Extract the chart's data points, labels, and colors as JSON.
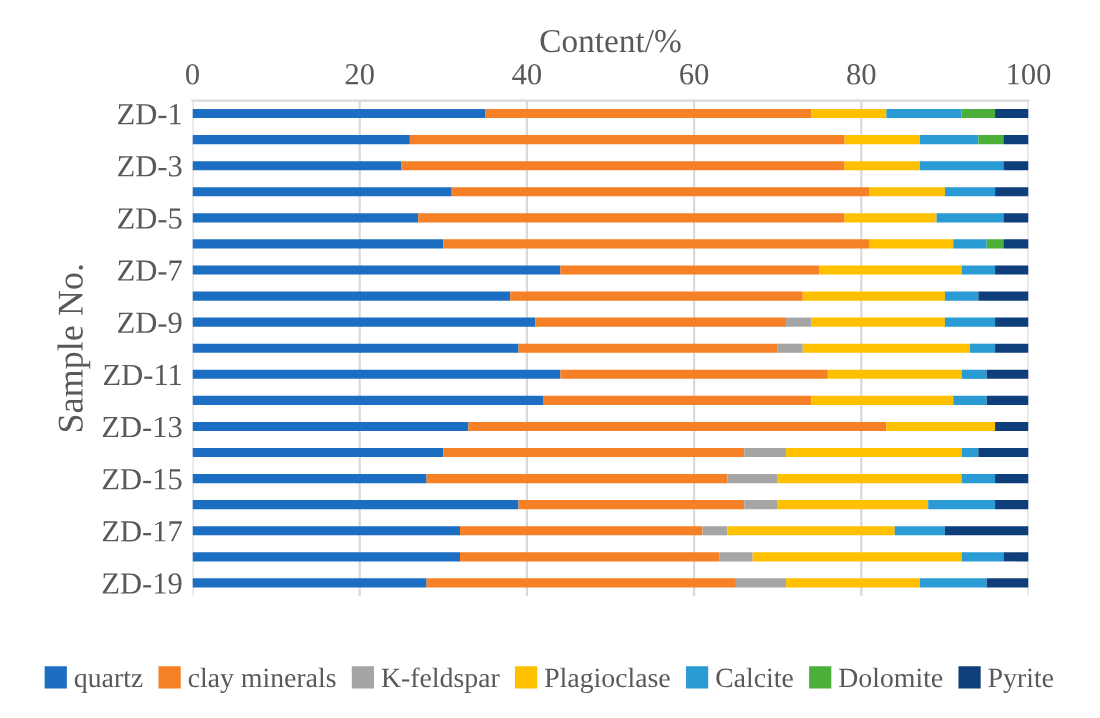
{
  "chart_data": {
    "type": "bar",
    "orientation": "horizontal",
    "stacked": true,
    "xlabel": "Content/%",
    "ylabel": "Sample No.",
    "categories": [
      "ZD-1",
      null,
      "ZD-3",
      null,
      "ZD-5",
      null,
      "ZD-7",
      null,
      "ZD-9",
      null,
      "ZD-11",
      null,
      "ZD-13",
      null,
      "ZD-15",
      null,
      "ZD-17",
      null,
      "ZD-19"
    ],
    "series": [
      {
        "name": "quartz",
        "color": "#1b6ec2",
        "values": [
          35,
          26,
          25,
          31,
          27,
          30,
          44,
          38,
          41,
          39,
          44,
          42,
          33,
          30,
          28,
          39,
          32,
          32,
          28
        ]
      },
      {
        "name": "clay minerals",
        "color": "#f58025",
        "values": [
          39,
          52,
          53,
          50,
          51,
          51,
          31,
          35,
          30,
          31,
          32,
          32,
          50,
          36,
          36,
          27,
          29,
          31,
          37
        ]
      },
      {
        "name": "K-feldspar",
        "color": "#a5a5a5",
        "values": [
          0,
          0,
          0,
          0,
          0,
          0,
          0,
          0,
          3,
          3,
          0,
          0,
          0,
          5,
          6,
          4,
          3,
          4,
          6
        ]
      },
      {
        "name": "Plagioclase",
        "color": "#ffc000",
        "values": [
          9,
          9,
          9,
          9,
          11,
          10,
          17,
          17,
          16,
          20,
          16,
          17,
          13,
          21,
          22,
          18,
          20,
          25,
          16
        ]
      },
      {
        "name": "Calcite",
        "color": "#2b9bd6",
        "values": [
          9,
          7,
          10,
          6,
          8,
          4,
          4,
          4,
          6,
          3,
          3,
          4,
          0,
          2,
          4,
          8,
          6,
          5,
          8
        ]
      },
      {
        "name": "Dolomite",
        "color": "#4caf3a",
        "values": [
          4,
          3,
          0,
          0,
          0,
          2,
          0,
          0,
          0,
          0,
          0,
          0,
          0,
          0,
          0,
          0,
          0,
          0,
          0
        ]
      },
      {
        "name": "Pyrite",
        "color": "#0e3f7a",
        "values": [
          4,
          3,
          3,
          4,
          3,
          3,
          4,
          6,
          4,
          4,
          5,
          5,
          4,
          6,
          4,
          4,
          10,
          3,
          5
        ]
      }
    ],
    "xlim": [
      0,
      100
    ],
    "xticks": [
      0,
      20,
      40,
      60,
      80,
      100
    ],
    "grid": "x",
    "legend": "bottom"
  }
}
